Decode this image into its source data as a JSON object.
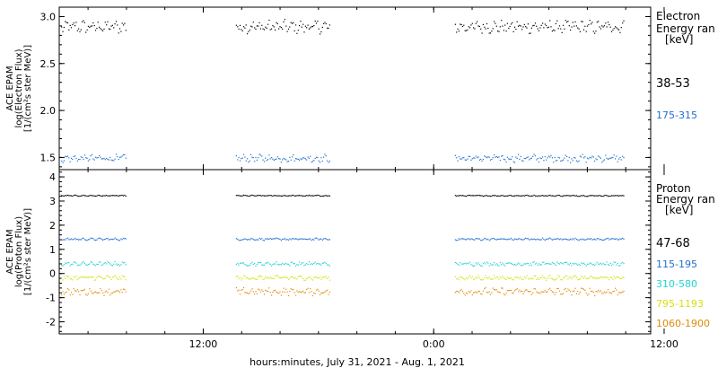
{
  "chart_data": [
    {
      "type": "scatter",
      "panel": "electron",
      "ylabel_lines": [
        "ACE EPAM",
        "log(Electron Flux)",
        "[1/(cm²s ster MeV)]"
      ],
      "ylim": [
        1.37,
        3.1
      ],
      "yticks": [
        1.5,
        2.0,
        2.5,
        3.0
      ],
      "ytick_labels": [
        "1.5",
        "2.0",
        "2.5",
        "3.0"
      ],
      "legend_title_lines": [
        "Electron",
        "Energy ran",
        "[keV]"
      ],
      "series": [
        {
          "name": "38-53",
          "color": "#000000",
          "mean": 2.89,
          "spread": 0.06
        },
        {
          "name": "175-315",
          "color": "#1f6fd0",
          "mean": 1.49,
          "spread": 0.035
        }
      ]
    },
    {
      "type": "scatter",
      "panel": "proton",
      "ylabel_lines": [
        "ACE EPAM",
        "log(Proton Flux)",
        "[1/(cm²s ster MeV)]"
      ],
      "ylim": [
        -2.5,
        4.3
      ],
      "yticks": [
        -2,
        -1,
        0,
        1,
        2,
        3,
        4
      ],
      "ytick_labels": [
        "-2",
        "-1",
        "0",
        "1",
        "2",
        "3",
        "4"
      ],
      "legend_title_lines": [
        "Proton",
        "Energy ran",
        "[keV]"
      ],
      "series": [
        {
          "name": "47-68",
          "color": "#000000",
          "mean": 3.22,
          "spread": 0.02
        },
        {
          "name": "115-195",
          "color": "#1f6fd0",
          "mean": 1.42,
          "spread": 0.04
        },
        {
          "name": "310-580",
          "color": "#22d3d3",
          "mean": 0.4,
          "spread": 0.07
        },
        {
          "name": "795-1193",
          "color": "#d8e010",
          "mean": -0.18,
          "spread": 0.08
        },
        {
          "name": "1060-1900",
          "color": "#e08a0a",
          "mean": -0.75,
          "spread": 0.13
        }
      ]
    }
  ],
  "time_axis": {
    "range_hours": [
      4.5,
      35.3
    ],
    "data_segments_hours": [
      [
        4.6,
        8.0
      ],
      [
        13.7,
        18.6
      ],
      [
        25.1,
        33.9
      ]
    ],
    "ticks_hours": [
      12,
      24,
      36
    ],
    "tick_labels": [
      "12:00",
      "0:00",
      "12:00"
    ],
    "xlabel": "hours:minutes, July 31, 2021 - Aug.  1, 2021"
  }
}
